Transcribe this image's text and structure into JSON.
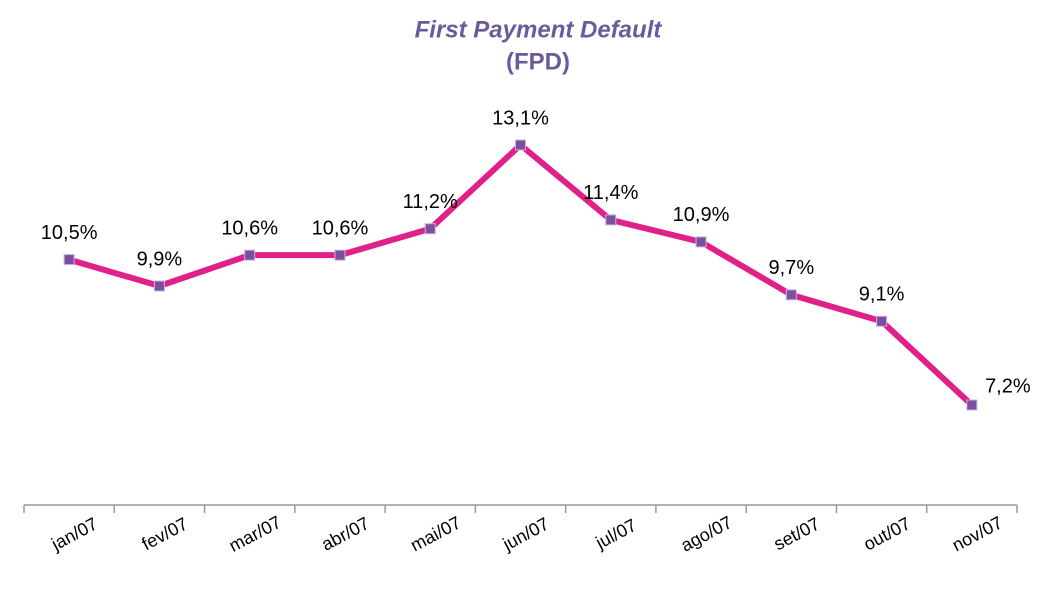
{
  "chart_data": {
    "type": "line",
    "title": "First Payment Default",
    "subtitle": "(FPD)",
    "categories": [
      "jan/07",
      "fev/07",
      "mar/07",
      "abr/07",
      "mai/07",
      "jun/07",
      "jul/07",
      "ago/07",
      "set/07",
      "out/07",
      "nov/07"
    ],
    "series": [
      {
        "name": "FPD",
        "color": "#e0218a",
        "values": [
          10.5,
          9.9,
          10.6,
          10.6,
          11.2,
          13.1,
          11.4,
          10.9,
          9.7,
          9.1,
          7.2
        ],
        "value_labels": [
          "10,5%",
          "9,9%",
          "10,6%",
          "10,6%",
          "11,2%",
          "13,1%",
          "11,4%",
          "10,9%",
          "9,7%",
          "9,1%",
          "7,2%"
        ]
      }
    ],
    "marker_color": "#7b4fa0"
  }
}
